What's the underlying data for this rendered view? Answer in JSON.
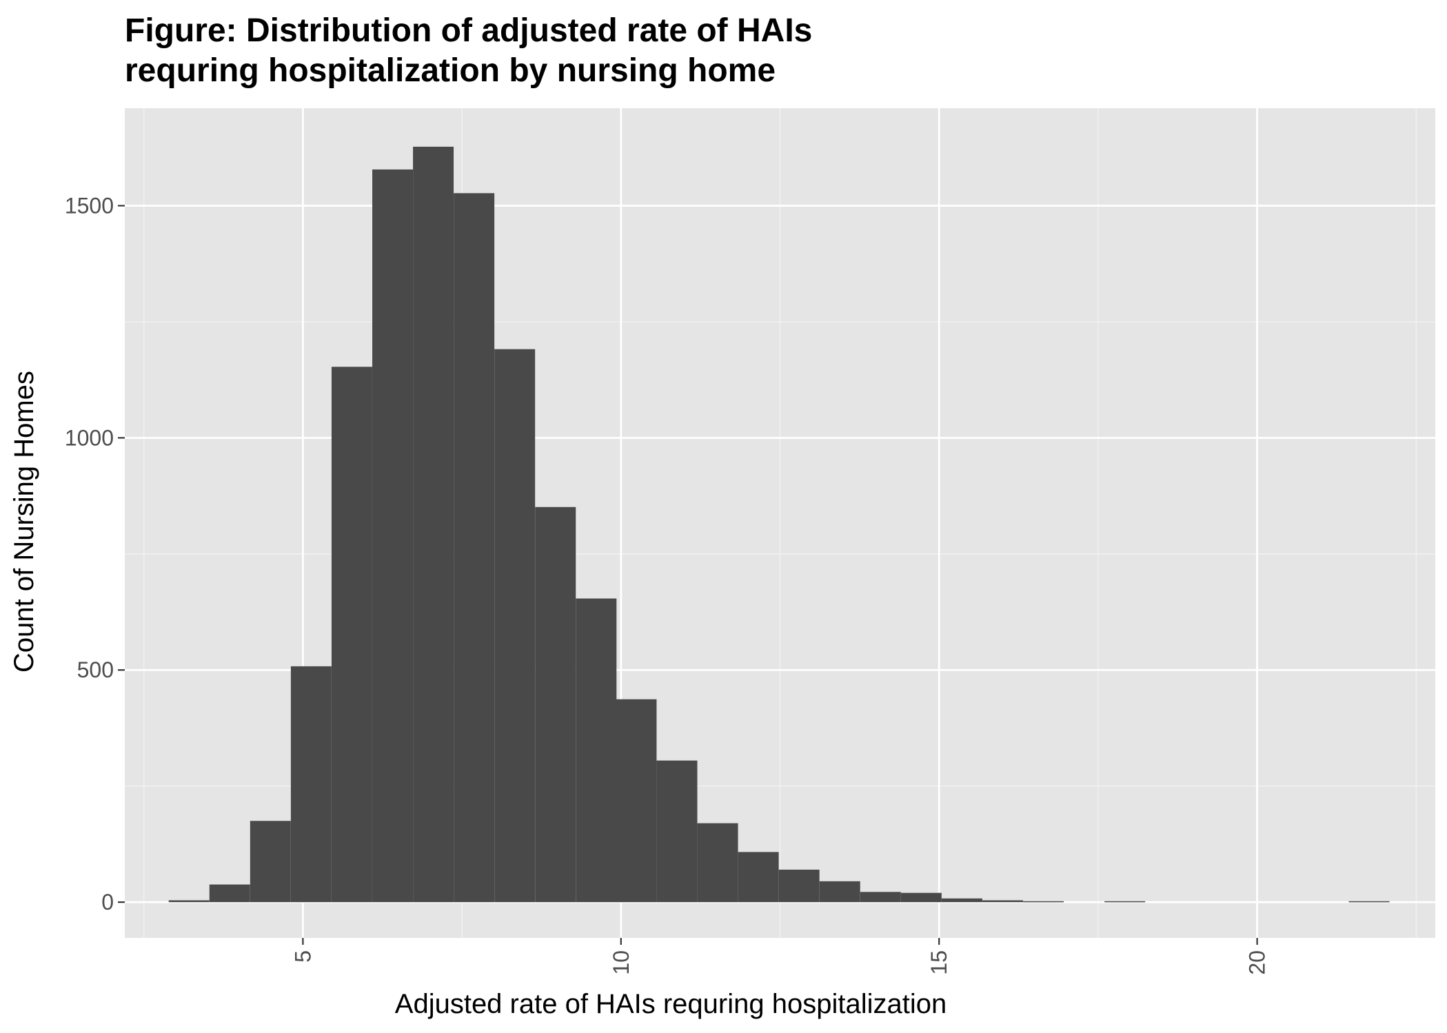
{
  "chart_data": {
    "type": "bar",
    "title_lines": [
      "Figure: Distribution of adjusted rate of HAIs",
      "requring hospitalization by nursing home"
    ],
    "xlabel": "Adjusted rate of HAIs requring hospitalization",
    "ylabel": "Count of Nursing Homes",
    "xlim": [
      2.2,
      22.8
    ],
    "ylim": [
      -77,
      1710
    ],
    "x_ticks": [
      5,
      10,
      15,
      20
    ],
    "x_tick_labels": [
      "5",
      "10",
      "15",
      "20"
    ],
    "y_ticks": [
      0,
      500,
      1000,
      1500
    ],
    "y_tick_labels": [
      "0",
      "500",
      "1000",
      "1500"
    ],
    "x_minor_grid": [
      2.5,
      7.5,
      12.5,
      17.5,
      22.5
    ],
    "y_minor_grid": [
      250,
      750,
      1250
    ],
    "grid": true,
    "legend": "none",
    "bin_width": 0.639,
    "bin_centers": [
      3.21,
      3.85,
      4.49,
      5.13,
      5.77,
      6.41,
      7.05,
      7.69,
      8.33,
      8.97,
      9.61,
      10.24,
      10.88,
      11.52,
      12.16,
      12.8,
      13.44,
      14.08,
      14.72,
      15.36,
      16.0,
      16.64,
      17.28,
      17.92,
      18.56,
      19.2,
      19.84,
      20.48,
      21.12,
      21.76
    ],
    "counts": [
      4,
      38,
      175,
      508,
      1153,
      1578,
      1627,
      1527,
      1191,
      851,
      654,
      437,
      305,
      170,
      108,
      70,
      45,
      22,
      20,
      8,
      4,
      2,
      0,
      2,
      0,
      0,
      0,
      0,
      0,
      2
    ],
    "colors": {
      "bar": "#494949",
      "panel_bg": "#e5e5e5",
      "grid_major": "#ffffff",
      "grid_minor": "#f2f2f2",
      "tick": "#333333"
    }
  }
}
